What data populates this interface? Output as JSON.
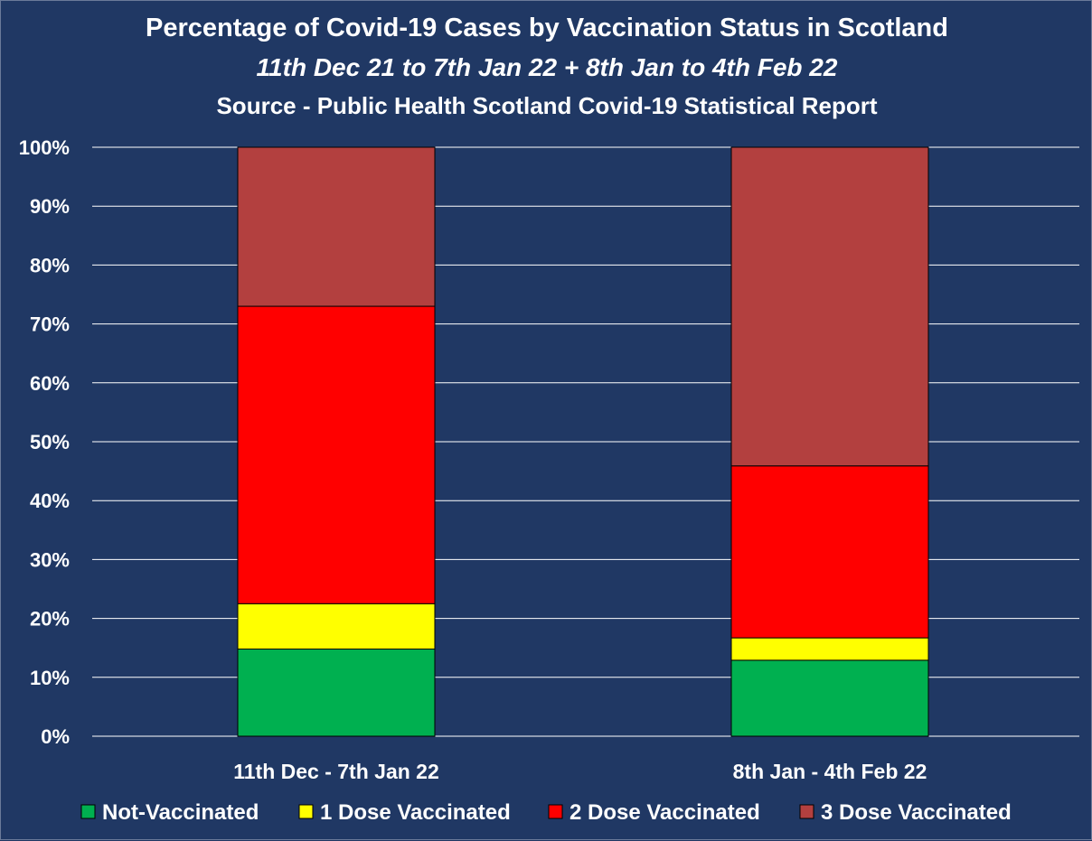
{
  "chart_data": {
    "type": "bar",
    "stacked": true,
    "title": "Percentage of Covid-19 Cases by Vaccination Status in Scotland",
    "subtitle": "11th Dec 21 to 7th Jan 22 + 8th Jan to 4th Feb 22",
    "source": "Source - Public Health Scotland Covid-19 Statistical Report",
    "categories": [
      "11th Dec - 7th Jan 22",
      "8th Jan - 4th Feb 22"
    ],
    "series": [
      {
        "name": "Not-Vaccinated",
        "color": "#00b050",
        "values": [
          14.8,
          12.9
        ]
      },
      {
        "name": "1 Dose Vaccinated",
        "color": "#ffff00",
        "values": [
          7.7,
          3.8
        ]
      },
      {
        "name": "2 Dose Vaccinated",
        "color": "#ff0000",
        "values": [
          50.5,
          29.2
        ]
      },
      {
        "name": "3 Dose Vaccinated",
        "color": "#b3403f",
        "values": [
          27.0,
          54.1
        ]
      }
    ],
    "ylim": [
      0,
      100
    ],
    "yticks": [
      "0%",
      "10%",
      "20%",
      "30%",
      "40%",
      "50%",
      "60%",
      "70%",
      "80%",
      "90%",
      "100%"
    ],
    "grid": true,
    "legend": "bottom",
    "background": "#203864",
    "gridline_color": "#ffffff"
  }
}
